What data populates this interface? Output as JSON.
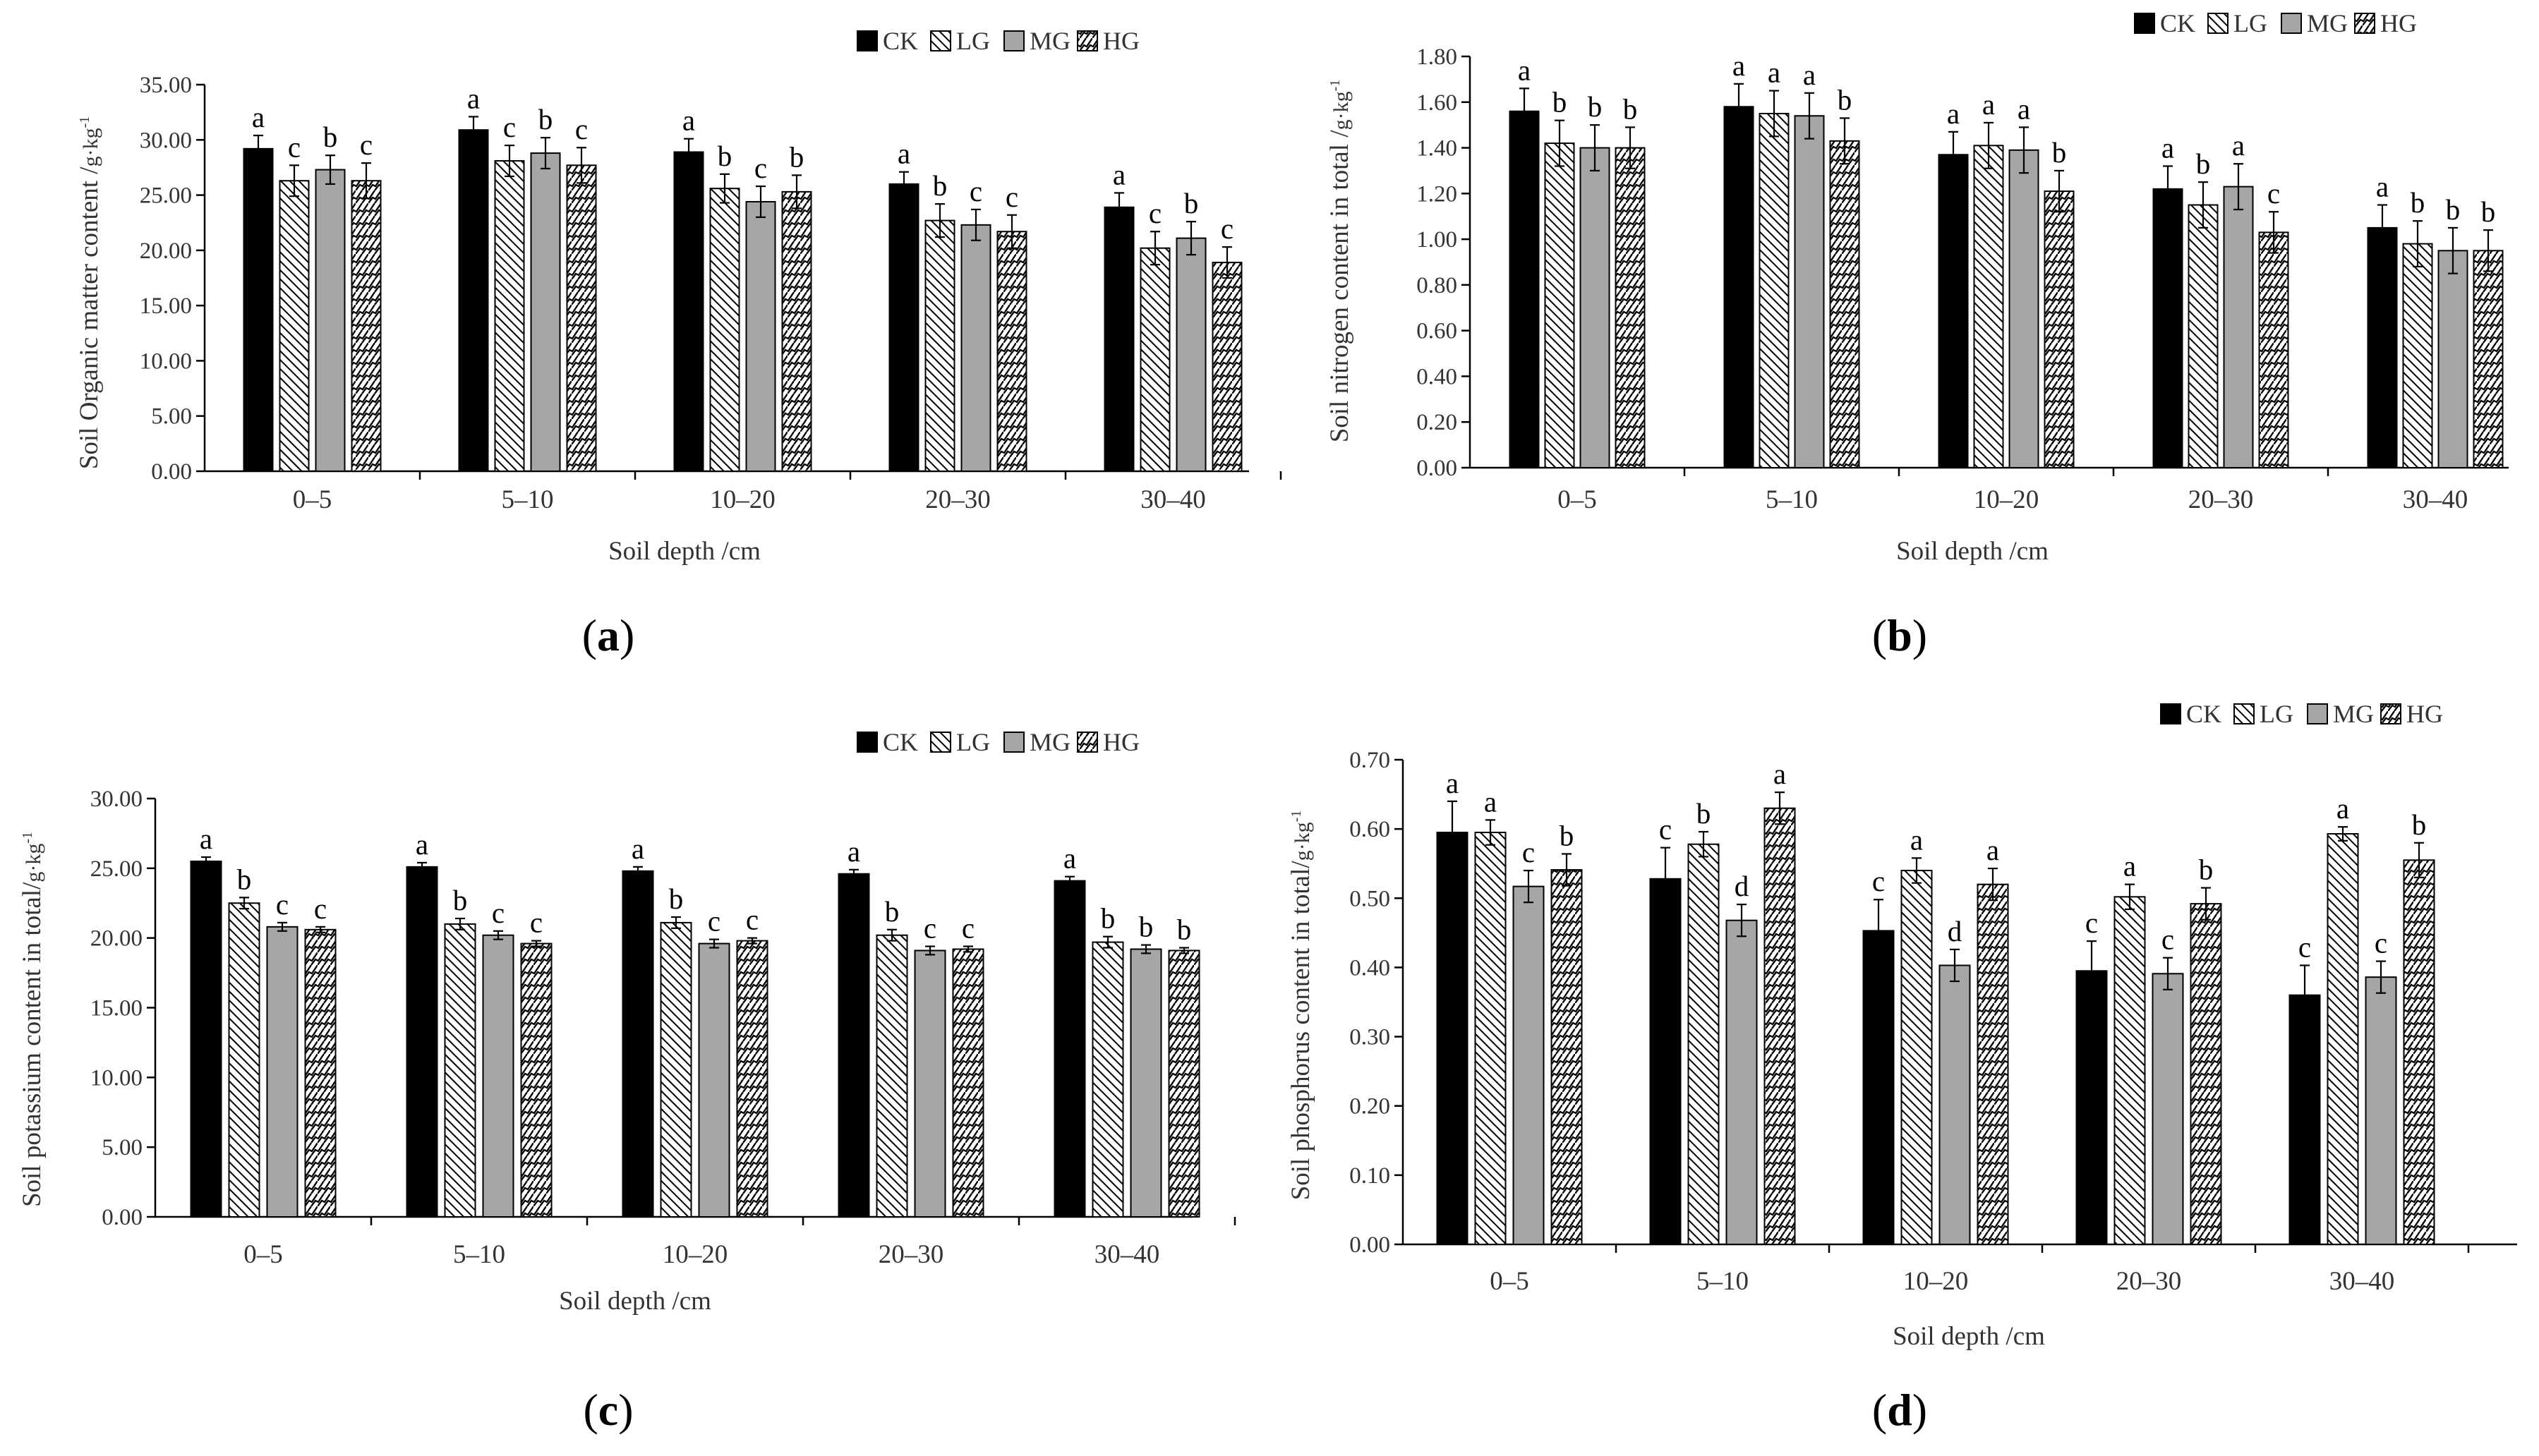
{
  "legend": [
    {
      "key": "CK",
      "label": "CK",
      "pattern": "solid-black"
    },
    {
      "key": "LG",
      "label": "LG",
      "pattern": "dense-diagonal"
    },
    {
      "key": "MG",
      "label": "MG",
      "pattern": "solid-gray"
    },
    {
      "key": "HG",
      "label": "HG",
      "pattern": "wavy-diagonal"
    }
  ],
  "colors": {
    "CK": "#000000",
    "MG": "#a6a6a6",
    "axis": "#000000",
    "text": "#333333"
  },
  "chart_data": [
    {
      "type": "bar",
      "panel": "(a)",
      "panel_letter": "a",
      "xlabel": "Soil depth /cm",
      "ylabel_main": "Soil Organic matter content /",
      "ylabel_unit": "g·kg",
      "ylabel_exp": "-1",
      "ylim": [
        0,
        35
      ],
      "yticks": [
        "0.00",
        "5.00",
        "10.00",
        "15.00",
        "20.00",
        "25.00",
        "30.00",
        "35.00"
      ],
      "categories": [
        "0–5",
        "5–10",
        "10–20",
        "20–30",
        "30–40"
      ],
      "series": [
        {
          "name": "CK",
          "values": [
            29.2,
            30.9,
            28.9,
            26.0,
            23.9
          ],
          "errors": [
            1.2,
            1.2,
            1.2,
            1.1,
            1.3
          ],
          "letters": [
            "a",
            "a",
            "a",
            "a",
            "a"
          ]
        },
        {
          "name": "LG",
          "values": [
            26.3,
            28.1,
            25.6,
            22.7,
            20.2
          ],
          "errors": [
            1.4,
            1.4,
            1.3,
            1.5,
            1.5
          ],
          "letters": [
            "c",
            "c",
            "b",
            "b",
            "c"
          ]
        },
        {
          "name": "MG",
          "values": [
            27.3,
            28.8,
            24.4,
            22.3,
            21.1
          ],
          "errors": [
            1.3,
            1.4,
            1.4,
            1.4,
            1.5
          ],
          "letters": [
            "b",
            "b",
            "c",
            "c",
            "b"
          ]
        },
        {
          "name": "HG",
          "values": [
            26.3,
            27.7,
            25.3,
            21.7,
            18.9
          ],
          "errors": [
            1.6,
            1.6,
            1.5,
            1.5,
            1.4
          ],
          "letters": [
            "c",
            "c",
            "b",
            "c",
            "c"
          ]
        }
      ]
    },
    {
      "type": "bar",
      "panel": "(b)",
      "panel_letter": "b",
      "xlabel": "Soil depth /cm",
      "ylabel_main": "Soil nitrogen content in total /",
      "ylabel_unit": "g·kg",
      "ylabel_exp": "-1",
      "ylim": [
        0,
        1.8
      ],
      "yticks": [
        "0.00",
        "0.20",
        "0.40",
        "0.60",
        "0.80",
        "1.00",
        "1.20",
        "1.40",
        "1.60",
        "1.80"
      ],
      "categories": [
        "0–5",
        "5–10",
        "10–20",
        "20–30",
        "30–40"
      ],
      "series": [
        {
          "name": "CK",
          "values": [
            1.56,
            1.58,
            1.37,
            1.22,
            1.05
          ],
          "errors": [
            0.1,
            0.1,
            0.1,
            0.1,
            0.1
          ],
          "letters": [
            "a",
            "a",
            "a",
            "a",
            "a"
          ]
        },
        {
          "name": "LG",
          "values": [
            1.42,
            1.55,
            1.41,
            1.15,
            0.98
          ],
          "errors": [
            0.1,
            0.1,
            0.1,
            0.1,
            0.1
          ],
          "letters": [
            "b",
            "a",
            "a",
            "b",
            "b"
          ]
        },
        {
          "name": "MG",
          "values": [
            1.4,
            1.54,
            1.39,
            1.23,
            0.95
          ],
          "errors": [
            0.1,
            0.1,
            0.1,
            0.1,
            0.1
          ],
          "letters": [
            "b",
            "a",
            "a",
            "a",
            "b"
          ]
        },
        {
          "name": "HG",
          "values": [
            1.4,
            1.43,
            1.21,
            1.03,
            0.95
          ],
          "errors": [
            0.09,
            0.1,
            0.09,
            0.09,
            0.09
          ],
          "letters": [
            "b",
            "b",
            "b",
            "c",
            "b"
          ]
        }
      ]
    },
    {
      "type": "bar",
      "panel": "(c)",
      "panel_letter": "c",
      "xlabel": "Soil depth /cm",
      "ylabel_main": "Soil potassium content in total/",
      "ylabel_unit": "g·kg",
      "ylabel_exp": "-1",
      "ylim": [
        0,
        30
      ],
      "yticks": [
        "0.00",
        "5.00",
        "10.00",
        "15.00",
        "20.00",
        "25.00",
        "30.00"
      ],
      "categories": [
        "0–5",
        "5–10",
        "10–20",
        "20–30",
        "30–40"
      ],
      "series": [
        {
          "name": "CK",
          "values": [
            25.5,
            25.1,
            24.8,
            24.6,
            24.1
          ],
          "errors": [
            0.3,
            0.3,
            0.3,
            0.3,
            0.3
          ],
          "letters": [
            "a",
            "a",
            "a",
            "a",
            "a"
          ]
        },
        {
          "name": "LG",
          "values": [
            22.5,
            21.0,
            21.1,
            20.2,
            19.7
          ],
          "errors": [
            0.4,
            0.4,
            0.4,
            0.4,
            0.4
          ],
          "letters": [
            "b",
            "b",
            "b",
            "b",
            "b"
          ]
        },
        {
          "name": "MG",
          "values": [
            20.8,
            20.2,
            19.6,
            19.1,
            19.2
          ],
          "errors": [
            0.3,
            0.3,
            0.3,
            0.3,
            0.3
          ],
          "letters": [
            "c",
            "c",
            "c",
            "c",
            "b"
          ]
        },
        {
          "name": "HG",
          "values": [
            20.6,
            19.6,
            19.8,
            19.2,
            19.1
          ],
          "errors": [
            0.2,
            0.2,
            0.2,
            0.2,
            0.2
          ],
          "letters": [
            "c",
            "c",
            "c",
            "c",
            "b"
          ]
        }
      ]
    },
    {
      "type": "bar",
      "panel": "(d)",
      "panel_letter": "d",
      "xlabel": "Soil depth /cm",
      "ylabel_main": "Soil phosphorus content in total/",
      "ylabel_unit": "g·kg",
      "ylabel_exp": "-1",
      "ylim": [
        0,
        0.7
      ],
      "yticks": [
        "0.00",
        "0.10",
        "0.20",
        "0.30",
        "0.40",
        "0.50",
        "0.60",
        "0.70"
      ],
      "categories": [
        "0–5",
        "5–10",
        "10–20",
        "20–30",
        "30–40"
      ],
      "series": [
        {
          "name": "CK",
          "values": [
            0.595,
            0.528,
            0.453,
            0.395,
            0.36
          ],
          "errors": [
            0.045,
            0.045,
            0.045,
            0.043,
            0.043
          ],
          "letters": [
            "a",
            "c",
            "c",
            "c",
            "c"
          ]
        },
        {
          "name": "LG",
          "values": [
            0.595,
            0.578,
            0.54,
            0.502,
            0.593
          ],
          "errors": [
            0.018,
            0.018,
            0.018,
            0.018,
            0.01
          ],
          "letters": [
            "a",
            "b",
            "a",
            "a",
            "a"
          ]
        },
        {
          "name": "MG",
          "values": [
            0.517,
            0.468,
            0.403,
            0.391,
            0.386
          ],
          "errors": [
            0.023,
            0.023,
            0.023,
            0.023,
            0.023
          ],
          "letters": [
            "c",
            "d",
            "d",
            "c",
            "c"
          ]
        },
        {
          "name": "HG",
          "values": [
            0.541,
            0.63,
            0.52,
            0.492,
            0.555
          ],
          "errors": [
            0.023,
            0.023,
            0.023,
            0.023,
            0.025
          ],
          "letters": [
            "b",
            "a",
            "a",
            "b",
            "b"
          ]
        }
      ]
    }
  ]
}
